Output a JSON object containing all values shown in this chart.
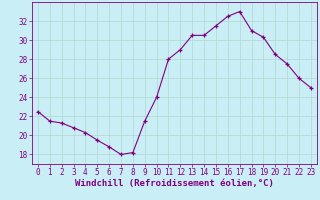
{
  "x": [
    0,
    1,
    2,
    3,
    4,
    5,
    6,
    7,
    8,
    9,
    10,
    11,
    12,
    13,
    14,
    15,
    16,
    17,
    18,
    19,
    20,
    21,
    22,
    23
  ],
  "y": [
    22.5,
    21.5,
    21.3,
    20.8,
    20.3,
    19.5,
    18.8,
    18.0,
    18.2,
    21.5,
    24.0,
    28.0,
    29.0,
    30.5,
    30.5,
    31.5,
    32.5,
    33.0,
    31.0,
    30.3,
    28.5,
    27.5,
    26.0,
    25.0
  ],
  "line_color": "#800080",
  "marker": "+",
  "bg_color": "#caeef5",
  "grid_color": "#b0d8cc",
  "xlabel": "Windchill (Refroidissement éolien,°C)",
  "xlim": [
    -0.5,
    23.5
  ],
  "ylim": [
    17,
    34
  ],
  "yticks": [
    18,
    20,
    22,
    24,
    26,
    28,
    30,
    32
  ],
  "xticks": [
    0,
    1,
    2,
    3,
    4,
    5,
    6,
    7,
    8,
    9,
    10,
    11,
    12,
    13,
    14,
    15,
    16,
    17,
    18,
    19,
    20,
    21,
    22,
    23
  ],
  "xlabel_fontsize": 6.5,
  "tick_fontsize": 5.5
}
